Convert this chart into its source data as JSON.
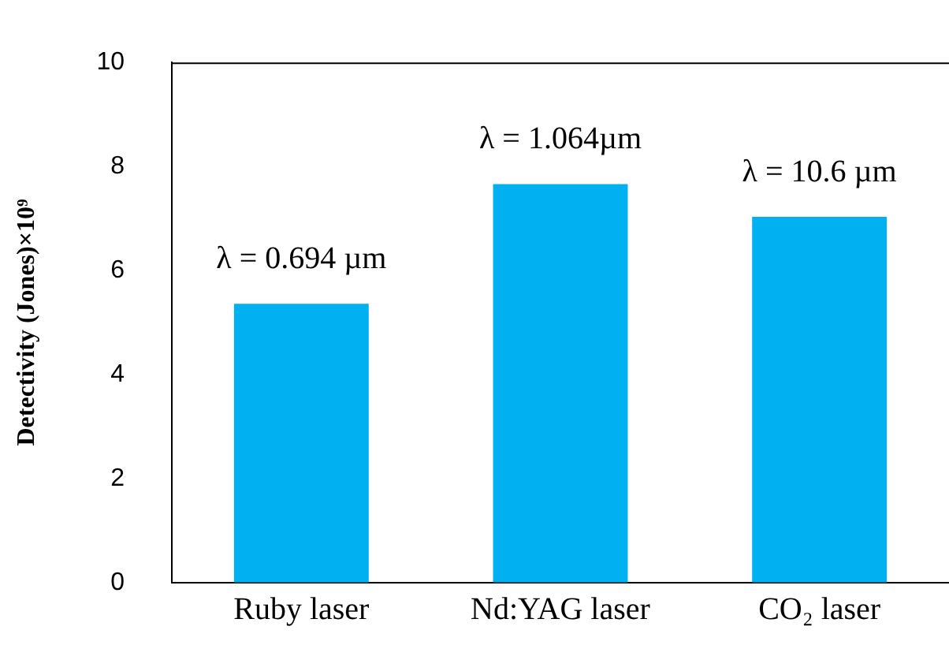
{
  "chart_data": {
    "type": "bar",
    "ylabel": "Detectivity (Jones)×10⁹",
    "categories": [
      "Ruby laser",
      "Nd:YAG laser",
      "CO₂ laser"
    ],
    "values": [
      5.36,
      7.66,
      7.03
    ],
    "color": "#00b0f0",
    "ylim": [
      0,
      10
    ],
    "yticks": [
      0,
      2,
      4,
      6,
      8,
      10
    ],
    "grid": false,
    "legend": false,
    "annotations": [
      {
        "text": "λ = 0.694 µm",
        "x": "Ruby laser",
        "y": 5.36
      },
      {
        "text": "λ = 1.064µm",
        "x": "Nd:YAG laser",
        "y": 7.66
      },
      {
        "text": "λ = 10.6 µm",
        "x": "CO₂ laser",
        "y": 7.03
      }
    ]
  }
}
